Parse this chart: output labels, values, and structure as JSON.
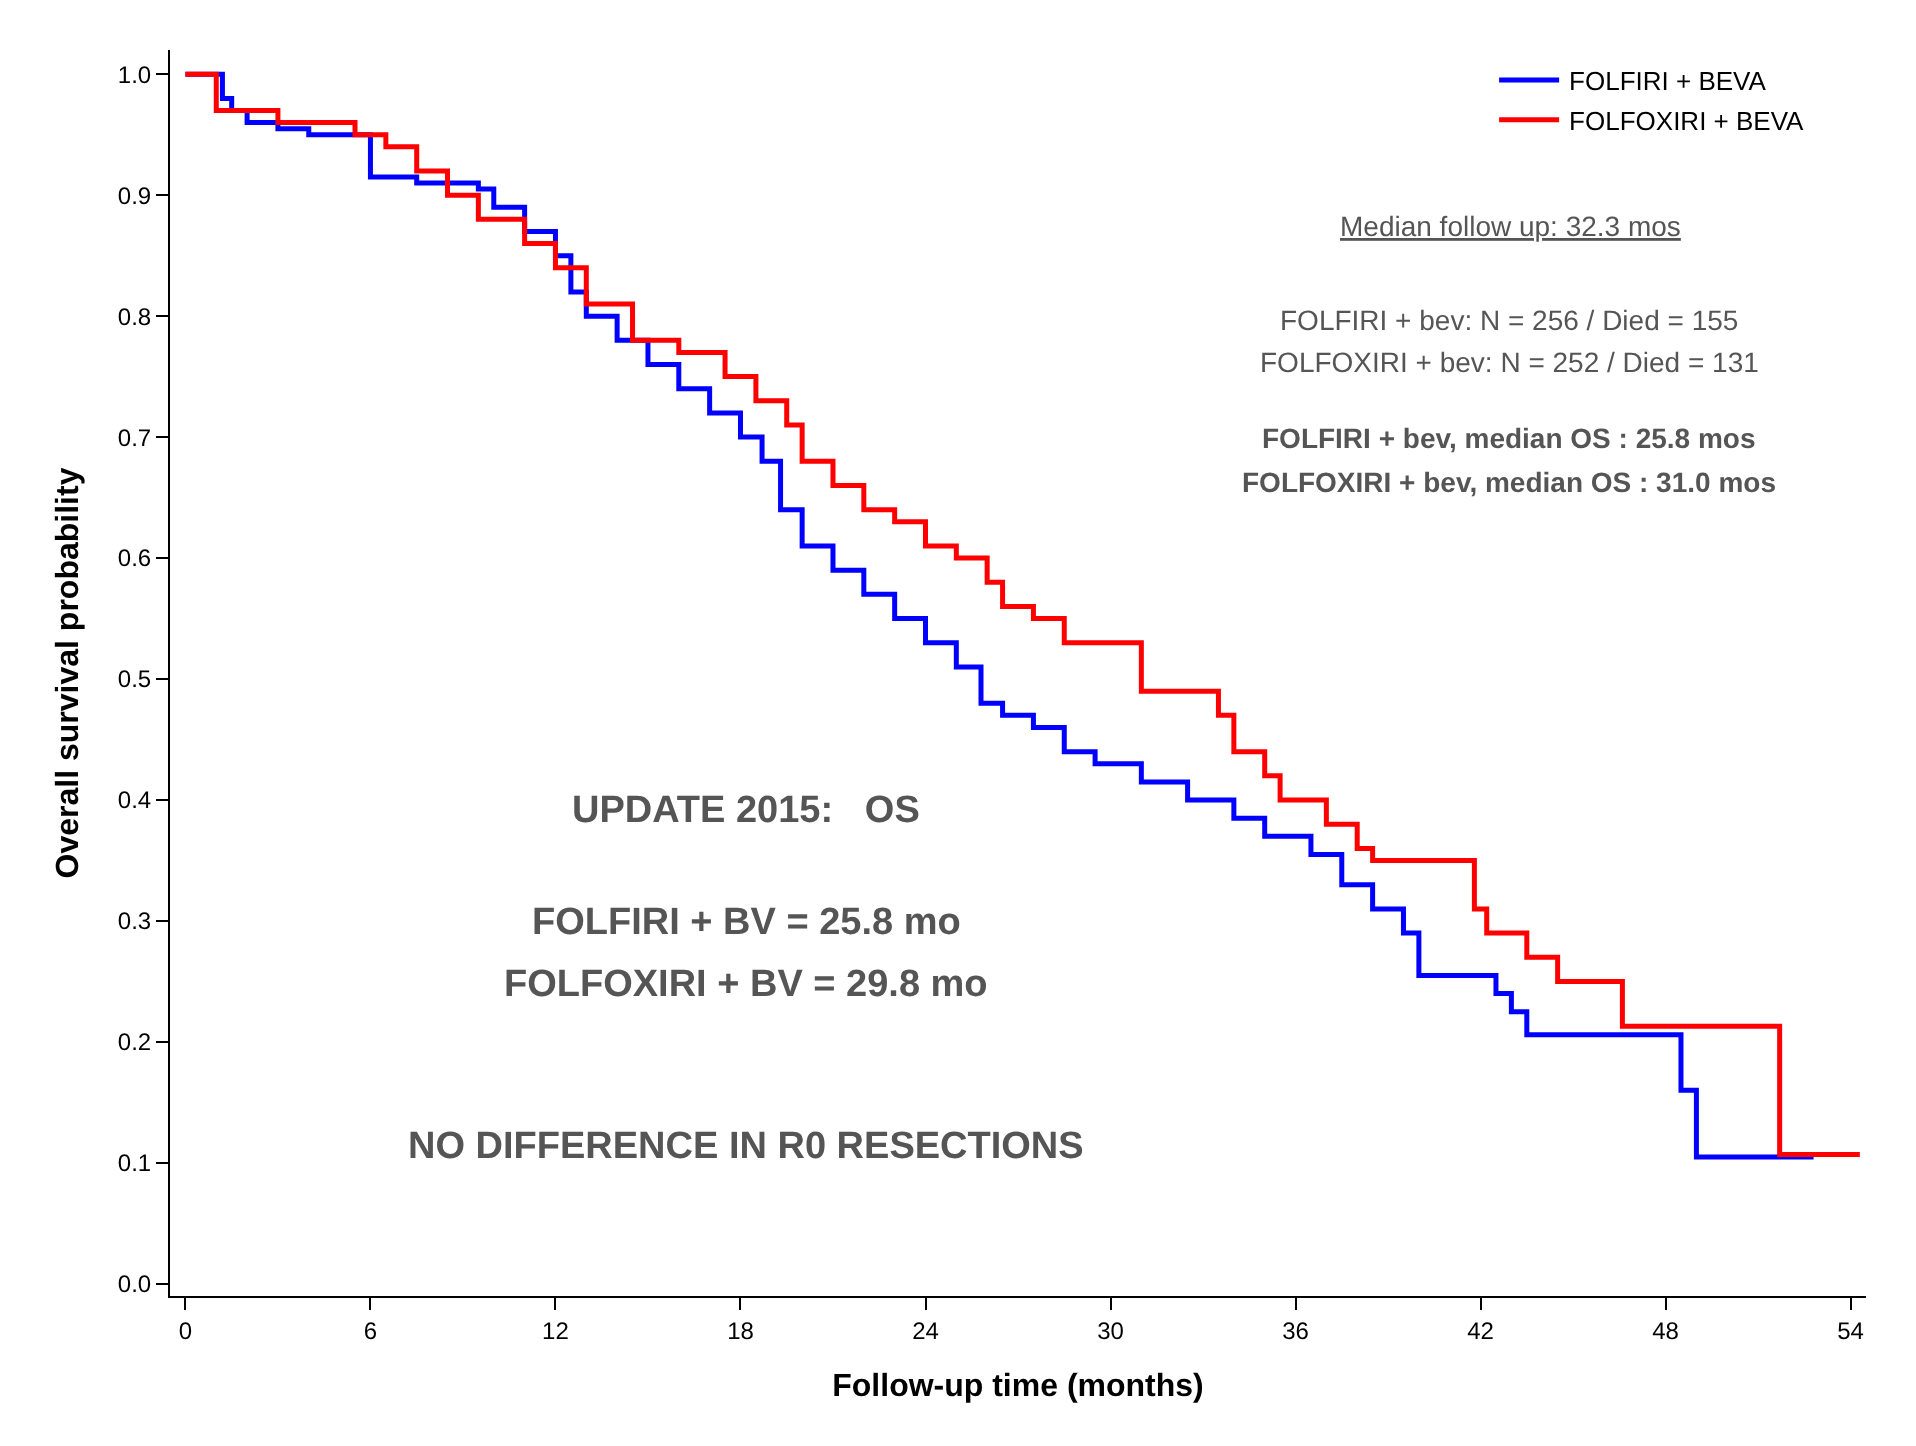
{
  "chart_data": {
    "type": "step",
    "xlabel": "Follow-up time (months)",
    "ylabel": "Overall survival probability",
    "xlim": [
      -0.5,
      54.5
    ],
    "xticks": [
      0,
      6,
      12,
      18,
      24,
      30,
      36,
      42,
      48,
      54
    ],
    "ylim": [
      -0.01,
      1.02
    ],
    "yticks": [
      {
        "value": 0,
        "label": "0.0"
      },
      0.1,
      0.2,
      0.3,
      0.4,
      0.5,
      0.6,
      0.7,
      0.8,
      0.9,
      {
        "value": 1,
        "label": "1.0"
      }
    ],
    "legend": "top right",
    "marker": "none",
    "line_style": "solid",
    "series": [
      {
        "name": "FOLFIRI + BEVA",
        "color": "#0000ff",
        "x": [
          0,
          1.2,
          1.5,
          2,
          3,
          4,
          5.5,
          6,
          7.5,
          9.5,
          10,
          11,
          12,
          12.5,
          13,
          14,
          15,
          16,
          17,
          18,
          18.7,
          19.3,
          20,
          21,
          22,
          23,
          24,
          25,
          25.8,
          26.5,
          27.5,
          28.5,
          29.5,
          31,
          32.5,
          34,
          35,
          36.5,
          37.5,
          38.5,
          39.5,
          40,
          42.5,
          43,
          43.5,
          44.6,
          48.5,
          49,
          52.8
        ],
        "values": [
          1.0,
          0.98,
          0.97,
          0.96,
          0.955,
          0.95,
          0.95,
          0.915,
          0.91,
          0.905,
          0.89,
          0.87,
          0.85,
          0.82,
          0.8,
          0.78,
          0.76,
          0.74,
          0.72,
          0.7,
          0.68,
          0.64,
          0.61,
          0.59,
          0.57,
          0.55,
          0.53,
          0.51,
          0.48,
          0.47,
          0.46,
          0.44,
          0.43,
          0.415,
          0.4,
          0.385,
          0.37,
          0.355,
          0.33,
          0.31,
          0.29,
          0.255,
          0.24,
          0.225,
          0.206,
          0.206,
          0.16,
          0.105,
          0.105
        ]
      },
      {
        "name": "FOLFOXIRI + BEVA",
        "color": "#ff0000",
        "x": [
          0,
          1,
          3,
          5.5,
          6.5,
          7.5,
          8.5,
          9.5,
          11,
          12,
          13,
          14.5,
          16,
          17.5,
          18.5,
          19.5,
          20,
          21,
          22,
          23,
          24,
          25,
          26,
          26.5,
          27.5,
          28.5,
          31,
          33.5,
          34,
          35,
          35.5,
          37,
          38,
          38.5,
          41.8,
          42.2,
          43.5,
          44.5,
          46.6,
          51.7,
          54.3
        ],
        "values": [
          1.0,
          0.97,
          0.96,
          0.95,
          0.94,
          0.92,
          0.9,
          0.88,
          0.86,
          0.84,
          0.81,
          0.78,
          0.77,
          0.75,
          0.73,
          0.71,
          0.68,
          0.66,
          0.64,
          0.63,
          0.61,
          0.6,
          0.58,
          0.56,
          0.55,
          0.53,
          0.49,
          0.47,
          0.44,
          0.42,
          0.4,
          0.38,
          0.36,
          0.35,
          0.31,
          0.29,
          0.27,
          0.25,
          0.213,
          0.107,
          0.107
        ]
      }
    ],
    "annotations": [
      "Median follow up: 32.3 mos",
      "FOLFIRI + bev: N = 256 / Died = 155",
      "FOLFOXIRI + bev: N = 252 / Died = 131",
      "FOLFIRI + bev, median OS : 25.8 mos",
      "FOLFOXIRI + bev, median OS : 31.0 mos",
      "UPDATE 2015:   OS",
      "FOLFIRI + BV = 25.8 mo",
      "FOLFOXIRI + BV = 29.8 mo",
      "NO DIFFERENCE IN R0 RESECTIONS"
    ]
  }
}
